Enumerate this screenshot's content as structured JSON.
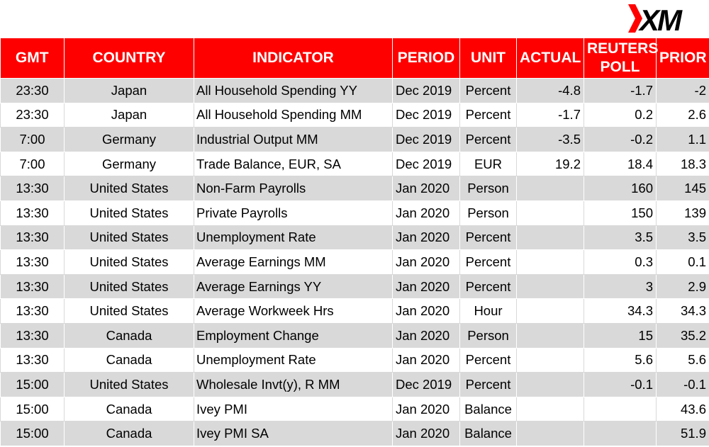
{
  "brand": {
    "name": "XM",
    "accent": "#ff0000"
  },
  "headers": [
    "GMT",
    "COUNTRY",
    "INDICATOR",
    "PERIOD",
    "UNIT",
    "ACTUAL",
    "REUTERS POLL",
    "PRIOR"
  ],
  "rows": [
    [
      "23:30",
      "Japan",
      "All Household Spending YY",
      "Dec 2019",
      "Percent",
      "-4.8",
      "-1.7",
      "-2"
    ],
    [
      "23:30",
      "Japan",
      "All Household Spending MM",
      "Dec 2019",
      "Percent",
      "-1.7",
      "0.2",
      "2.6"
    ],
    [
      "7:00",
      "Germany",
      "Industrial Output MM",
      "Dec 2019",
      "Percent",
      "-3.5",
      "-0.2",
      "1.1"
    ],
    [
      "7:00",
      "Germany",
      "Trade Balance, EUR, SA",
      "Dec 2019",
      "EUR",
      "19.2",
      "18.4",
      "18.3"
    ],
    [
      "13:30",
      "United States",
      "Non-Farm Payrolls",
      "Jan 2020",
      "Person",
      "",
      "160",
      "145"
    ],
    [
      "13:30",
      "United States",
      "Private Payrolls",
      "Jan 2020",
      "Person",
      "",
      "150",
      "139"
    ],
    [
      "13:30",
      "United States",
      "Unemployment Rate",
      "Jan 2020",
      "Percent",
      "",
      "3.5",
      "3.5"
    ],
    [
      "13:30",
      "United States",
      "Average Earnings MM",
      "Jan 2020",
      "Percent",
      "",
      "0.3",
      "0.1"
    ],
    [
      "13:30",
      "United States",
      "Average Earnings YY",
      "Jan 2020",
      "Percent",
      "",
      "3",
      "2.9"
    ],
    [
      "13:30",
      "United States",
      "Average Workweek Hrs",
      "Jan 2020",
      "Hour",
      "",
      "34.3",
      "34.3"
    ],
    [
      "13:30",
      "Canada",
      "Employment Change",
      "Jan 2020",
      "Person",
      "",
      "15",
      "35.2"
    ],
    [
      "13:30",
      "Canada",
      "Unemployment Rate",
      "Jan 2020",
      "Percent",
      "",
      "5.6",
      "5.6"
    ],
    [
      "15:00",
      "United States",
      "Wholesale Invt(y), R MM",
      "Dec 2019",
      "Percent",
      "",
      "-0.1",
      "-0.1"
    ],
    [
      "15:00",
      "Canada",
      "Ivey PMI",
      "Jan 2020",
      "Balance",
      "",
      "",
      "43.6"
    ],
    [
      "15:00",
      "Canada",
      "Ivey PMI SA",
      "Jan 2020",
      "Balance",
      "",
      "",
      "51.9"
    ]
  ]
}
